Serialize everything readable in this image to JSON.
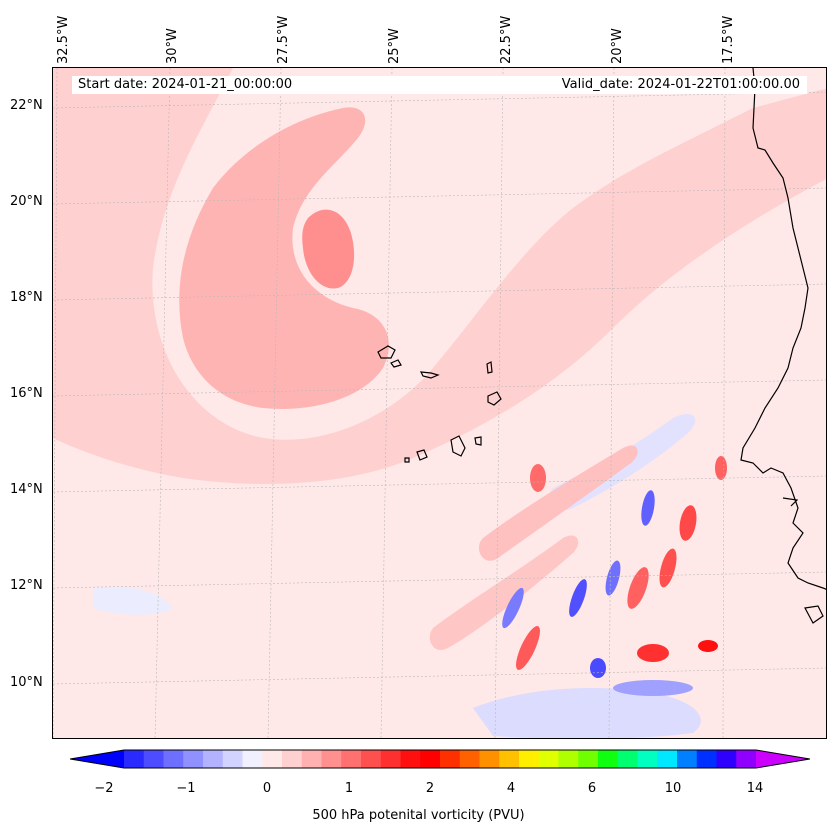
{
  "map": {
    "lon_labels": [
      "32.5°W",
      "30°W",
      "27.5°W",
      "25°W",
      "22.5°W",
      "20°W",
      "17.5°W"
    ],
    "lat_labels": [
      "22°N",
      "20°N",
      "18°N",
      "16°N",
      "14°N",
      "12°N",
      "10°N"
    ],
    "start_date": "Start date: 2024-01-21_00:00:00",
    "valid_date": "Valid_date: 2024-01-22T01:00:00.00",
    "background_color": "#fee8e8",
    "coastline_color": "#000000"
  },
  "colorbar": {
    "tick_labels": [
      "−2",
      "−1",
      "0",
      "1",
      "2",
      "4",
      "6",
      "10",
      "14"
    ],
    "label": "500 hPa potenital vorticity (PVU)",
    "colors": [
      "#0000ff",
      "#2a2aff",
      "#4d4dff",
      "#6f6fff",
      "#9090ff",
      "#b2b2ff",
      "#d3d3ff",
      "#f0f0ff",
      "#ffe8e8",
      "#ffd0d0",
      "#ffb0b0",
      "#ff9090",
      "#ff7070",
      "#ff5050",
      "#ff3030",
      "#ff1010",
      "#ff0000",
      "#ff3000",
      "#ff6000",
      "#ff9000",
      "#ffc000",
      "#ffee00",
      "#e0ff00",
      "#b0ff00",
      "#70ff00",
      "#10ff10",
      "#00ff70",
      "#00ffc0",
      "#00e8ff",
      "#0080ff",
      "#0030ff",
      "#3000ff",
      "#9000ff",
      "#cc00ff"
    ]
  }
}
